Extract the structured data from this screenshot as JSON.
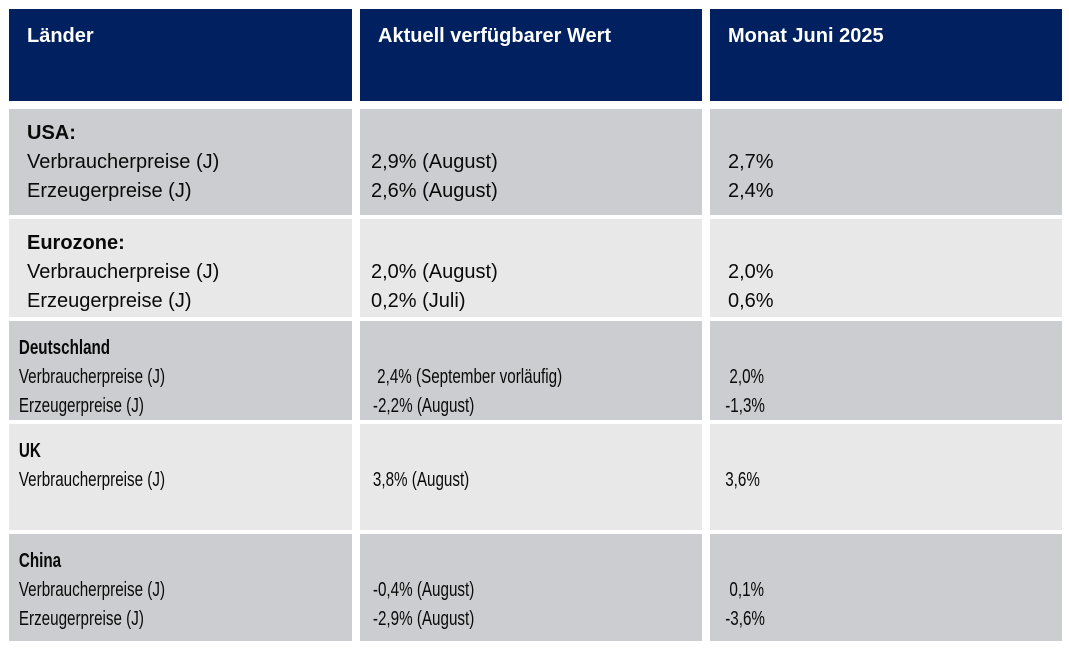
{
  "colors": {
    "header_bg": "#002060",
    "header_text": "#ffffff",
    "row_dark": "#cccdd0",
    "row_light": "#e8e8e9",
    "body_text": "#0a0a0a",
    "page_bg": "#ffffff"
  },
  "chart_data": {
    "type": "table",
    "title": "",
    "columns": [
      "Länder",
      "Aktuell verfügbarer Wert",
      "Monat Juni 2025"
    ],
    "rows": [
      {
        "country": "USA:",
        "entries": [
          {
            "label": "Verbraucherpreise (J)",
            "current": "2,9% (August)",
            "june": "2,7%"
          },
          {
            "label": "Erzeugerpreise (J)",
            "current": "2,6% (August)",
            "june": "2,4%"
          }
        ]
      },
      {
        "country": "Eurozone:",
        "entries": [
          {
            "label": "Verbraucherpreise (J)",
            "current": "2,0% (August)",
            "june": "2,0%"
          },
          {
            "label": "Erzeugerpreise (J)",
            "current": "0,2% (Juli)",
            "june": "0,6%"
          }
        ]
      },
      {
        "country": "Deutschland",
        "entries": [
          {
            "label": "Verbraucherpreise (J)",
            "current": " 2,4% (September vorläufig)",
            "june": " 2,0%"
          },
          {
            "label": "Erzeugerpreise (J)",
            "current": "-2,2% (August)",
            "june": "-1,3%"
          }
        ]
      },
      {
        "country": "UK",
        "entries": [
          {
            "label": "Verbraucherpreise (J)",
            "current": "3,8% (August)",
            "june": "3,6%"
          }
        ]
      },
      {
        "country": "China",
        "entries": [
          {
            "label": "Verbraucherpreise (J)",
            "current": "-0,4% (August)",
            "june": " 0,1%"
          },
          {
            "label": "Erzeugerpreise (J)",
            "current": "-2,9% (August)",
            "june": "-3,6%"
          }
        ]
      }
    ]
  }
}
